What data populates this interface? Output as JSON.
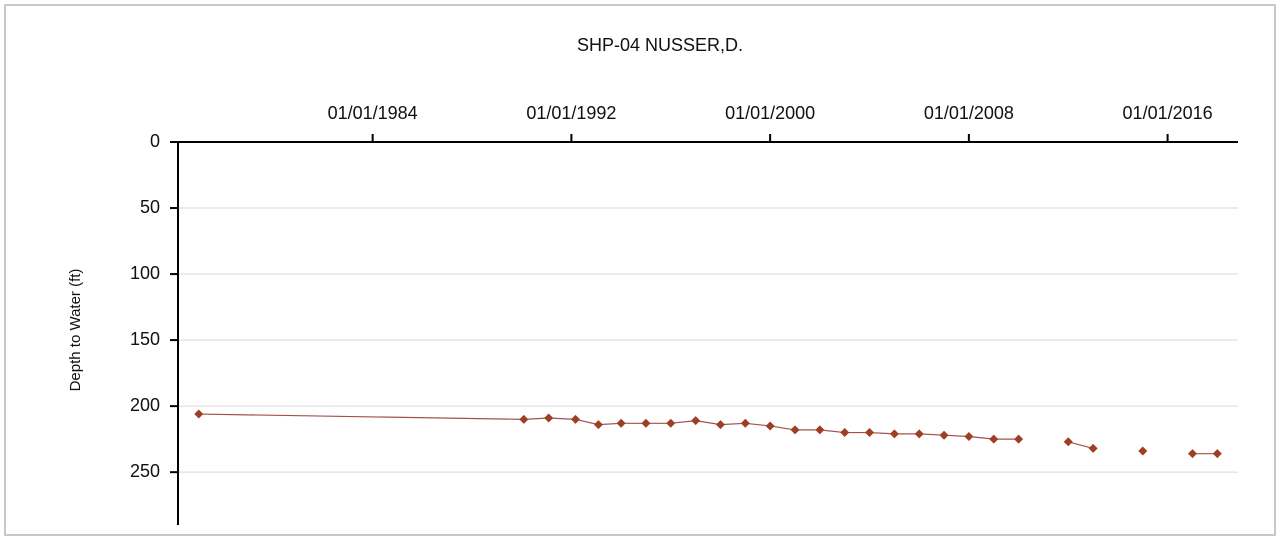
{
  "chart_data": {
    "type": "line",
    "title": "SHP-04  NUSSER,D.",
    "ylabel": "Depth to Water (ft)",
    "x": [
      "1977-01-01",
      "1990-02-01",
      "1991-02-01",
      "1992-03-01",
      "1993-02-01",
      "1994-01-01",
      "1995-01-01",
      "1996-01-01",
      "1997-01-01",
      "1998-01-01",
      "1999-01-01",
      "2000-01-01",
      "2001-01-01",
      "2002-01-01",
      "2003-01-01",
      "2004-01-01",
      "2005-01-01",
      "2006-01-01",
      "2007-01-01",
      "2008-01-01",
      "2009-01-01",
      "2010-01-01",
      "2011-01-01",
      "2012-01-01",
      "2013-01-01",
      "2014-01-01",
      "2015-01-01",
      "2016-01-01",
      "2017-01-01",
      "2018-01-01"
    ],
    "series": [
      {
        "name": "Depth to Water",
        "color": "#9c3f22",
        "line_color": "#a0524a",
        "values": [
          206,
          210,
          209,
          210,
          214,
          213,
          213,
          213,
          211,
          214,
          213,
          215,
          218,
          218,
          220,
          220,
          221,
          221,
          222,
          223,
          225,
          225,
          null,
          227,
          232,
          null,
          234,
          null,
          236,
          236
        ]
      }
    ],
    "xlim": [
      "1976-03-01",
      "2018-11-01"
    ],
    "xticks": [
      {
        "value": "1984-01-01",
        "label": "01/01/1984"
      },
      {
        "value": "1992-01-01",
        "label": "01/01/1992"
      },
      {
        "value": "2000-01-01",
        "label": "01/01/2000"
      },
      {
        "value": "2008-01-01",
        "label": "01/01/2008"
      },
      {
        "value": "2016-01-01",
        "label": "01/01/2016"
      }
    ],
    "ylim": [
      0,
      290
    ],
    "yticks": [
      0,
      50,
      100,
      150,
      200,
      250
    ],
    "y_inverted": true,
    "grid": true
  }
}
